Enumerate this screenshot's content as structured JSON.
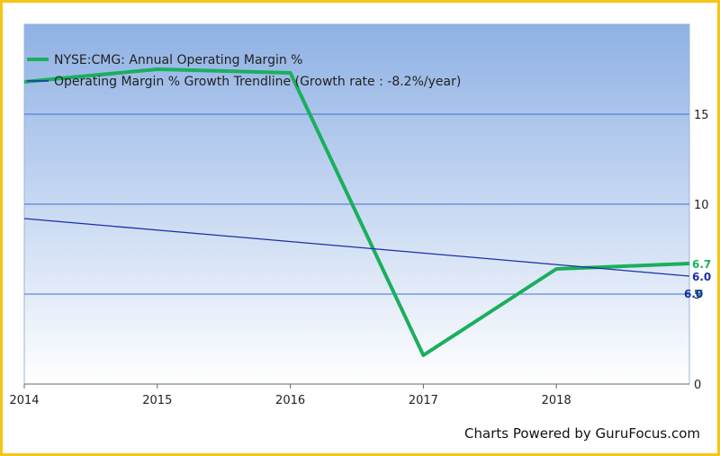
{
  "chart_data": {
    "type": "line",
    "x_ticks": [
      "2014",
      "2015",
      "2016",
      "2017",
      "2018"
    ],
    "y_ticks": [
      "0",
      "5",
      "10",
      "15"
    ],
    "ylim": [
      0,
      20
    ],
    "xlim": [
      2014,
      2019
    ],
    "grid": true,
    "legend_position": "top-left",
    "series": [
      {
        "name": "NYSE:CMG: Annual Operating Margin %",
        "color": "#1aaf5d",
        "x": [
          2014,
          2015,
          2016,
          2017,
          2018,
          2019
        ],
        "values": [
          16.8,
          17.5,
          17.3,
          1.6,
          6.4,
          6.7
        ],
        "end_label": "6.7"
      },
      {
        "name": "Operating Margin % Growth Trendline (Growth rate : -8.2%/year)",
        "color": "#1a2faa",
        "x": [
          2014,
          2019
        ],
        "values": [
          9.2,
          6.0
        ],
        "end_label": "6.0"
      }
    ],
    "overlap_labels": [
      "6.7",
      "6.0"
    ]
  },
  "footer": {
    "credit": "Charts Powered by GuruFocus.com"
  }
}
